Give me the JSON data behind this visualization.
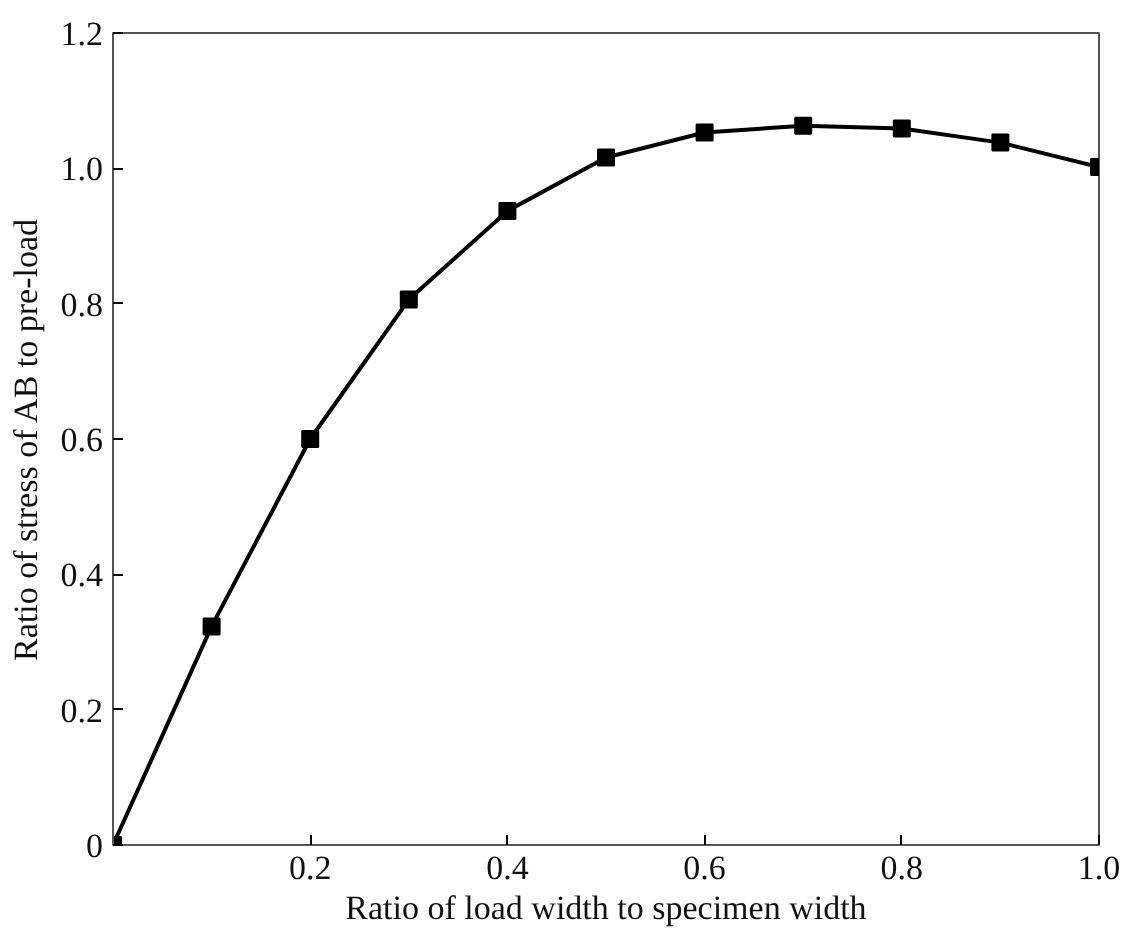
{
  "chart_data": {
    "type": "line",
    "xlabel": "Ratio of load width to specimen width",
    "ylabel": "Ratio of stress of AB to pre-load",
    "x": [
      0,
      0.1,
      0.2,
      0.3,
      0.4,
      0.5,
      0.6,
      0.7,
      0.8,
      0.9,
      1.0
    ],
    "series": [
      {
        "color": "#000000",
        "values": [
          0.0,
          0.323,
          0.6,
          0.806,
          0.937,
          1.016,
          1.053,
          1.063,
          1.059,
          1.038,
          1.002
        ]
      }
    ],
    "xlim": [
      0,
      1.0
    ],
    "ylim": [
      0,
      1.2
    ],
    "xticks": [
      {
        "value": 0,
        "label": null
      },
      0.2,
      0.4,
      0.6,
      0.8,
      {
        "value": 1.0,
        "label": "1.0"
      }
    ],
    "yticks": [
      0,
      0.2,
      0.4,
      0.6,
      0.8,
      {
        "value": 1.0,
        "label": "1.0"
      },
      1.2
    ],
    "marker": "square",
    "line_style": "solid",
    "grid": false
  }
}
